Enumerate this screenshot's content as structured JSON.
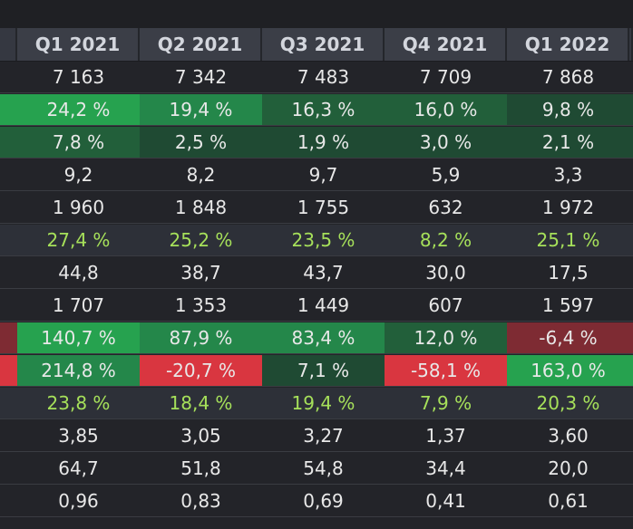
{
  "table": {
    "headers": [
      "Q1 2021",
      "Q2 2021",
      "Q3 2021",
      "Q4 2021",
      "Q1 2022"
    ],
    "colors": {
      "green_strong": "#26a24f",
      "green_mid": "#24874a",
      "green_dark": "#225f3a",
      "green_deep": "#1f4a33",
      "red_strong": "#d93640",
      "red_mid": "#b0303a",
      "red_dark": "#7e2b33",
      "lime_text": "#a6e05a"
    },
    "rows": [
      {
        "values": [
          "7 163",
          "7 342",
          "7 483",
          "7 709",
          "7 868"
        ]
      },
      {
        "values": [
          "24,2 %",
          "19,4 %",
          "16,3 %",
          "16,0 %",
          "9,8 %"
        ],
        "heat": [
          "green_strong",
          "green_mid",
          "green_dark",
          "green_dark",
          "green_deep"
        ],
        "stub": "green_strong"
      },
      {
        "values": [
          "7,8 %",
          "2,5 %",
          "1,9 %",
          "3,0 %",
          "2,1 %"
        ],
        "heat": [
          "green_dark",
          "green_deep",
          "green_deep",
          "green_deep",
          "green_deep"
        ],
        "stub": "green_dark"
      },
      {
        "values": [
          "9,2",
          "8,2",
          "9,7",
          "5,9",
          "3,3"
        ]
      },
      {
        "values": [
          "1 960",
          "1 848",
          "1 755",
          "632",
          "1 972"
        ]
      },
      {
        "values": [
          "27,4 %",
          "25,2 %",
          "23,5 %",
          "8,2 %",
          "25,1 %"
        ],
        "lime": true,
        "alt": true
      },
      {
        "values": [
          "44,8",
          "38,7",
          "43,7",
          "30,0",
          "17,5"
        ]
      },
      {
        "values": [
          "1 707",
          "1 353",
          "1 449",
          "607",
          "1 597"
        ]
      },
      {
        "values": [
          "140,7 %",
          "87,9 %",
          "83,4 %",
          "12,0 %",
          "-6,4 %"
        ],
        "heat": [
          "green_strong",
          "green_mid",
          "green_mid",
          "green_dark",
          "red_dark"
        ],
        "stub": "red_dark"
      },
      {
        "values": [
          "214,8 %",
          "-20,7 %",
          "7,1 %",
          "-58,1 %",
          "163,0 %"
        ],
        "heat": [
          "green_mid",
          "red_strong",
          "green_deep",
          "red_strong",
          "green_strong"
        ],
        "stub": "red_strong"
      },
      {
        "values": [
          "23,8 %",
          "18,4 %",
          "19,4 %",
          "7,9 %",
          "20,3 %"
        ],
        "lime": true,
        "alt": true
      },
      {
        "values": [
          "3,85",
          "3,05",
          "3,27",
          "1,37",
          "3,60"
        ]
      },
      {
        "values": [
          "64,7",
          "51,8",
          "54,8",
          "34,4",
          "20,0"
        ]
      },
      {
        "values": [
          "0,96",
          "0,83",
          "0,69",
          "0,41",
          "0,61"
        ]
      }
    ]
  }
}
